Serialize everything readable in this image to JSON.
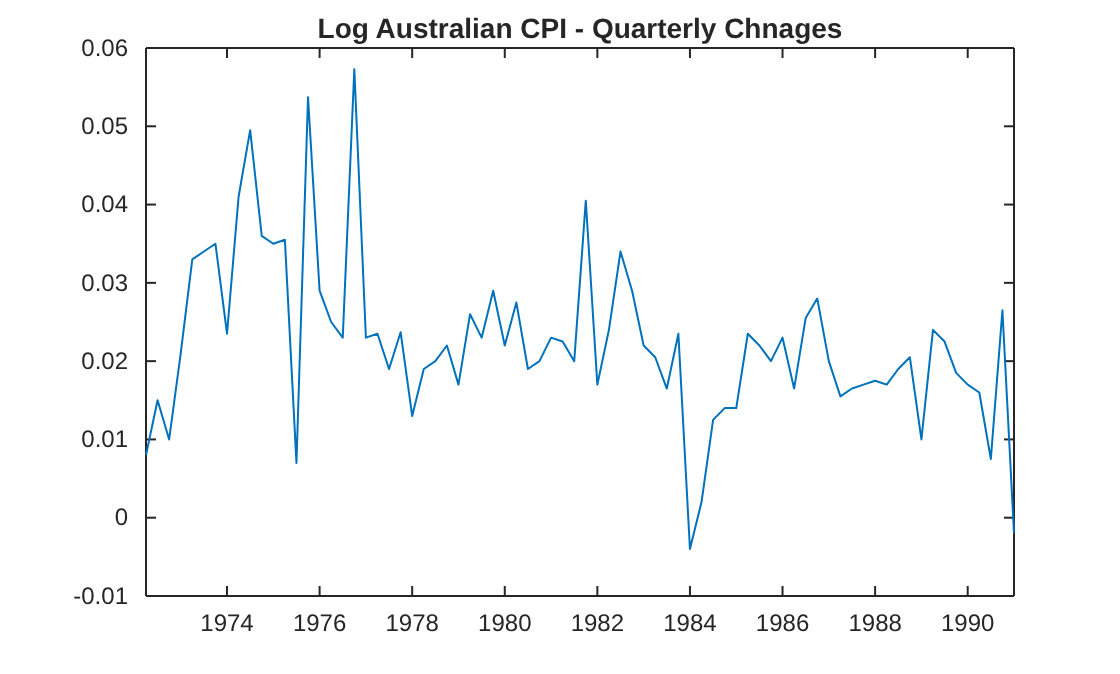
{
  "chart_data": {
    "type": "line",
    "title": "Log Australian CPI - Quarterly Chnages",
    "x": [
      1972.25,
      1972.5,
      1972.75,
      1973,
      1973.25,
      1973.5,
      1973.75,
      1974,
      1974.25,
      1974.5,
      1974.75,
      1975,
      1975.25,
      1975.5,
      1975.75,
      1976,
      1976.25,
      1976.5,
      1976.75,
      1977,
      1977.25,
      1977.5,
      1977.75,
      1978,
      1978.25,
      1978.5,
      1978.75,
      1979,
      1979.25,
      1979.5,
      1979.75,
      1980,
      1980.25,
      1980.5,
      1980.75,
      1981,
      1981.25,
      1981.5,
      1981.75,
      1982,
      1982.25,
      1982.5,
      1982.75,
      1983,
      1983.25,
      1983.5,
      1983.75,
      1984,
      1984.25,
      1984.5,
      1984.75,
      1985,
      1985.25,
      1985.5,
      1985.75,
      1986,
      1986.25,
      1986.5,
      1986.75,
      1987,
      1987.25,
      1987.5,
      1987.75,
      1988,
      1988.25,
      1988.5,
      1988.75,
      1989,
      1989.25,
      1989.5,
      1989.75,
      1990,
      1990.25,
      1990.5,
      1990.75,
      1991
    ],
    "series": [
      {
        "color": "#0072bd",
        "values": [
          0.008,
          0.015,
          0.01,
          0.021,
          0.033,
          0.034,
          0.035,
          0.0235,
          0.041,
          0.0495,
          0.036,
          0.035,
          0.0355,
          0.007,
          0.0537,
          0.029,
          0.025,
          0.023,
          0.0573,
          0.023,
          0.0235,
          0.019,
          0.0237,
          0.013,
          0.019,
          0.02,
          0.022,
          0.017,
          0.026,
          0.023,
          0.029,
          0.022,
          0.0275,
          0.019,
          0.02,
          0.023,
          0.0225,
          0.02,
          0.0405,
          0.017,
          0.024,
          0.034,
          0.029,
          0.022,
          0.0205,
          0.0165,
          0.0235,
          -0.004,
          0.002,
          0.0125,
          0.014,
          0.014,
          0.0235,
          0.022,
          0.02,
          0.023,
          0.0165,
          0.0255,
          0.028,
          0.02,
          0.0155,
          0.0165,
          0.017,
          0.0175,
          0.017,
          0.019,
          0.0205,
          0.01,
          0.024,
          0.0225,
          0.0185,
          0.017,
          0.016,
          0.0075,
          0.0265,
          -0.002
        ]
      }
    ],
    "xlim": [
      1972.25,
      1991
    ],
    "xticks": [
      1974,
      1976,
      1978,
      1980,
      1982,
      1984,
      1986,
      1988,
      1990
    ],
    "ylim": [
      -0.01,
      0.06
    ],
    "yticks": [
      {
        "value": -0.01,
        "label": "-0.01"
      },
      {
        "value": 0,
        "label": "0"
      },
      {
        "value": 0.01,
        "label": "0.01"
      },
      {
        "value": 0.02,
        "label": "0.02"
      },
      {
        "value": 0.03,
        "label": "0.03"
      },
      {
        "value": 0.04,
        "label": "0.04"
      },
      {
        "value": 0.05,
        "label": "0.05"
      },
      {
        "value": 0.06,
        "label": "0.06"
      }
    ],
    "grid": false,
    "marker": "none",
    "line_style": "solid"
  }
}
